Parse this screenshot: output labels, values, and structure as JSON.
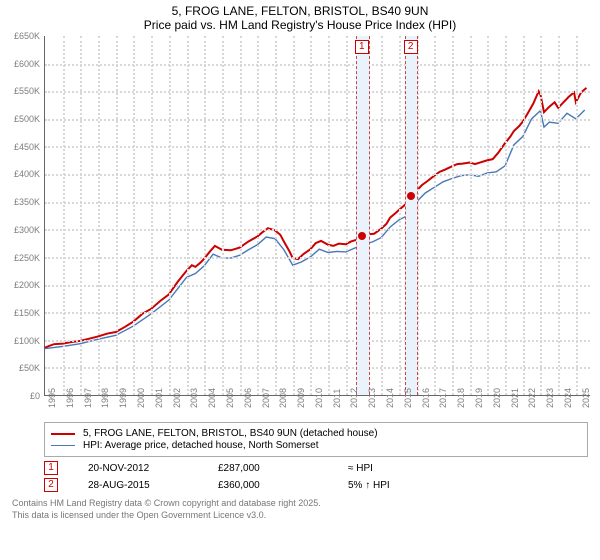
{
  "title": {
    "line1": "5, FROG LANE, FELTON, BRISTOL, BS40 9UN",
    "line2": "Price paid vs. HM Land Registry's House Price Index (HPI)"
  },
  "chart": {
    "type": "line",
    "background_color": "#ffffff",
    "grid_color": "#d8d8d8",
    "axis_color": "#666666",
    "tick_font_color": "#7d7d7d",
    "tick_fontsize": 9,
    "ylim": [
      0,
      650
    ],
    "ytick_labels": [
      "£0",
      "£50K",
      "£100K",
      "£150K",
      "£200K",
      "£250K",
      "£300K",
      "£350K",
      "£400K",
      "£450K",
      "£500K",
      "£550K",
      "£600K",
      "£650K"
    ],
    "ytick_values": [
      0,
      50,
      100,
      150,
      200,
      250,
      300,
      350,
      400,
      450,
      500,
      550,
      600,
      650
    ],
    "xlim": [
      1995,
      2025.8
    ],
    "years": [
      1995,
      1996,
      1997,
      1998,
      1999,
      2000,
      2001,
      2002,
      2003,
      2004,
      2005,
      2006,
      2007,
      2008,
      2009,
      2010,
      2011,
      2012,
      2013,
      2014,
      2015,
      2016,
      2017,
      2018,
      2019,
      2020,
      2021,
      2022,
      2023,
      2024,
      2025
    ],
    "markers": [
      {
        "id": "1",
        "x_start": 2012.55,
        "x_end": 2013.25
      },
      {
        "id": "2",
        "x_start": 2015.35,
        "x_end": 2015.98
      }
    ],
    "marker_band_color": "#eaf2fc",
    "marker_border_color": "#cc4444",
    "marker_tag_border": "#cc0000",
    "marker_tag_text": "#cc0000",
    "series": [
      {
        "name": "5, FROG LANE, FELTON, BRISTOL, BS40 9UN (detached house)",
        "color": "#cc0000",
        "width": 2,
        "data": [
          [
            1995,
            86
          ],
          [
            1995.5,
            92
          ],
          [
            1996,
            93
          ],
          [
            1996.5,
            96
          ],
          [
            1997,
            98
          ],
          [
            1997.5,
            102
          ],
          [
            1998,
            106
          ],
          [
            1998.5,
            111
          ],
          [
            1999,
            114
          ],
          [
            1999.5,
            123
          ],
          [
            2000,
            133
          ],
          [
            2000.5,
            147
          ],
          [
            2001,
            156
          ],
          [
            2001.5,
            170
          ],
          [
            2002,
            182
          ],
          [
            2002.5,
            205
          ],
          [
            2003,
            225
          ],
          [
            2003.3,
            235
          ],
          [
            2003.5,
            232
          ],
          [
            2003.8,
            240
          ],
          [
            2004,
            247
          ],
          [
            2004.3,
            259
          ],
          [
            2004.6,
            270
          ],
          [
            2005,
            263
          ],
          [
            2005.5,
            262
          ],
          [
            2006,
            267
          ],
          [
            2006.5,
            278
          ],
          [
            2007,
            287
          ],
          [
            2007.3,
            295
          ],
          [
            2007.6,
            302
          ],
          [
            2008,
            298
          ],
          [
            2008.3,
            290
          ],
          [
            2008.5,
            278
          ],
          [
            2008.8,
            261
          ],
          [
            2009,
            248
          ],
          [
            2009.3,
            246
          ],
          [
            2009.6,
            255
          ],
          [
            2010,
            264
          ],
          [
            2010.3,
            275
          ],
          [
            2010.6,
            279
          ],
          [
            2011,
            272
          ],
          [
            2011.3,
            270
          ],
          [
            2011.6,
            274
          ],
          [
            2012,
            273
          ],
          [
            2012.3,
            278
          ],
          [
            2012.6,
            281
          ],
          [
            2012.89,
            287
          ],
          [
            2013,
            288
          ],
          [
            2013.3,
            291
          ],
          [
            2013.6,
            292
          ],
          [
            2014,
            301
          ],
          [
            2014.3,
            310
          ],
          [
            2014.5,
            321
          ],
          [
            2014.8,
            329
          ],
          [
            2015,
            335
          ],
          [
            2015.3,
            343
          ],
          [
            2015.66,
            360
          ],
          [
            2016,
            370
          ],
          [
            2016.3,
            380
          ],
          [
            2016.6,
            387
          ],
          [
            2017,
            397
          ],
          [
            2017.3,
            404
          ],
          [
            2017.6,
            408
          ],
          [
            2018,
            414
          ],
          [
            2018.3,
            418
          ],
          [
            2018.6,
            419
          ],
          [
            2019,
            421
          ],
          [
            2019.3,
            418
          ],
          [
            2019.6,
            421
          ],
          [
            2020,
            425
          ],
          [
            2020.3,
            427
          ],
          [
            2020.6,
            438
          ],
          [
            2021,
            456
          ],
          [
            2021.3,
            468
          ],
          [
            2021.5,
            478
          ],
          [
            2021.8,
            487
          ],
          [
            2022,
            495
          ],
          [
            2022.3,
            511
          ],
          [
            2022.6,
            528
          ],
          [
            2022.9,
            550
          ],
          [
            2023,
            544
          ],
          [
            2023.2,
            512
          ],
          [
            2023.5,
            522
          ],
          [
            2023.8,
            530
          ],
          [
            2024,
            520
          ],
          [
            2024.3,
            530
          ],
          [
            2024.6,
            540
          ],
          [
            2024.9,
            548
          ],
          [
            2025,
            530
          ],
          [
            2025.3,
            548
          ],
          [
            2025.6,
            556
          ]
        ]
      },
      {
        "name": "HPI: Average price, detached house, North Somerset",
        "color": "#4878b8",
        "width": 1.4,
        "data": [
          [
            1995,
            84
          ],
          [
            1996,
            88
          ],
          [
            1997,
            93
          ],
          [
            1998,
            101
          ],
          [
            1999,
            108
          ],
          [
            2000,
            125
          ],
          [
            2001,
            147
          ],
          [
            2002,
            172
          ],
          [
            2003,
            213
          ],
          [
            2003.5,
            220
          ],
          [
            2004,
            234
          ],
          [
            2004.5,
            255
          ],
          [
            2005,
            248
          ],
          [
            2005.5,
            248
          ],
          [
            2006,
            253
          ],
          [
            2006.5,
            263
          ],
          [
            2007,
            272
          ],
          [
            2007.5,
            286
          ],
          [
            2008,
            283
          ],
          [
            2008.5,
            263
          ],
          [
            2009,
            235
          ],
          [
            2009.5,
            241
          ],
          [
            2010,
            250
          ],
          [
            2010.5,
            264
          ],
          [
            2011,
            258
          ],
          [
            2011.5,
            260
          ],
          [
            2012,
            259
          ],
          [
            2012.5,
            266
          ],
          [
            2013,
            273
          ],
          [
            2013.5,
            277
          ],
          [
            2014,
            285
          ],
          [
            2014.5,
            304
          ],
          [
            2015,
            317
          ],
          [
            2015.5,
            325
          ],
          [
            2016,
            350
          ],
          [
            2016.5,
            366
          ],
          [
            2017,
            376
          ],
          [
            2017.5,
            386
          ],
          [
            2018,
            392
          ],
          [
            2018.5,
            397
          ],
          [
            2019,
            399
          ],
          [
            2019.5,
            396
          ],
          [
            2020,
            402
          ],
          [
            2020.5,
            404
          ],
          [
            2021,
            415
          ],
          [
            2021.5,
            453
          ],
          [
            2022,
            468
          ],
          [
            2022.5,
            500
          ],
          [
            2023,
            515
          ],
          [
            2023.2,
            485
          ],
          [
            2023.5,
            494
          ],
          [
            2024,
            492
          ],
          [
            2024.5,
            510
          ],
          [
            2025,
            500
          ],
          [
            2025.5,
            516
          ]
        ]
      }
    ],
    "sale_points": [
      {
        "x": 2012.89,
        "y": 287,
        "color": "#cc0000"
      },
      {
        "x": 2015.66,
        "y": 360,
        "color": "#cc0000"
      }
    ]
  },
  "legend": {
    "border_color": "#aaaaaa",
    "fontsize": 10,
    "rows": [
      {
        "color": "#cc0000",
        "label": "5, FROG LANE, FELTON, BRISTOL, BS40 9UN (detached house)",
        "width": 2
      },
      {
        "color": "#4878b8",
        "label": "HPI: Average price, detached house, North Somerset",
        "width": 1.5
      }
    ]
  },
  "sales": {
    "rows": [
      {
        "id": "1",
        "date": "20-NOV-2012",
        "price": "£287,000",
        "delta": "≈ HPI"
      },
      {
        "id": "2",
        "date": "28-AUG-2015",
        "price": "£360,000",
        "delta": "5% ↑ HPI"
      }
    ]
  },
  "footer": {
    "line1": "Contains HM Land Registry data © Crown copyright and database right 2025.",
    "line2": "This data is licensed under the Open Government Licence v3.0."
  }
}
